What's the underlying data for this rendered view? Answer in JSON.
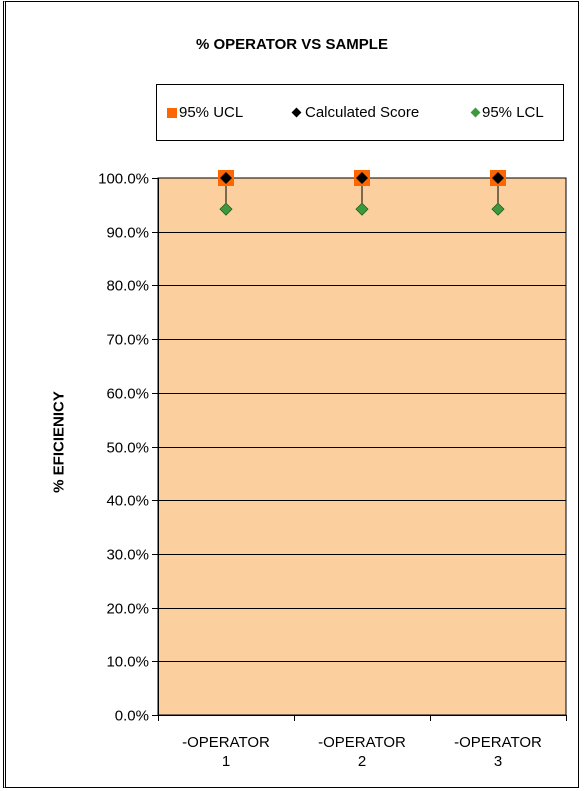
{
  "chart_data": {
    "type": "scatter",
    "title": "% OPERATOR VS SAMPLE",
    "ylabel": "% EFICIENICY",
    "xlabel": "",
    "categories": [
      [
        "-OPERATOR",
        "1"
      ],
      [
        "-OPERATOR",
        "2"
      ],
      [
        "-OPERATOR",
        "3"
      ]
    ],
    "ylim": [
      0,
      100
    ],
    "ytick_step": 10,
    "ytick_labels": [
      "0.0%",
      "10.0%",
      "20.0%",
      "30.0%",
      "40.0%",
      "50.0%",
      "60.0%",
      "70.0%",
      "80.0%",
      "90.0%",
      "100.0%"
    ],
    "grid": true,
    "legend_position": "top",
    "plot_background": "#fccf9e",
    "series": [
      {
        "name": "95% UCL",
        "marker": "square",
        "color": "#ff6600",
        "values": [
          100,
          100,
          100
        ]
      },
      {
        "name": "Calculated Score",
        "marker": "diamond",
        "color": "#000000",
        "values": [
          100,
          100,
          100
        ]
      },
      {
        "name": "95% LCL",
        "marker": "diamond",
        "color": "#3c9a3c",
        "values": [
          94.2,
          94.2,
          94.2
        ]
      }
    ]
  }
}
